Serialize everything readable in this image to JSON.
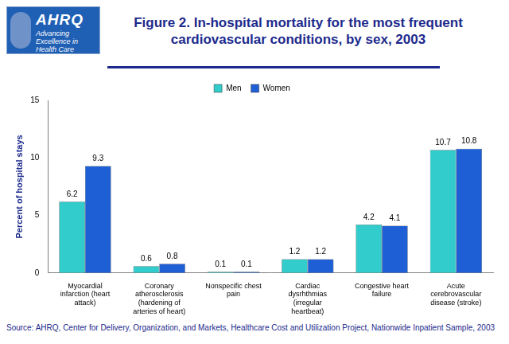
{
  "logo": {
    "name": "AHRQ",
    "tagline": "Advancing Excellence in Health Care"
  },
  "chart_data": {
    "type": "bar",
    "title": "Figure 2. In-hospital mortality for the most frequent cardiovascular conditions, by sex, 2003",
    "y_label": "Percent of hospital stays",
    "source": "Source: AHRQ, Center for Delivery, Organization, and Markets, Healthcare Cost and Utilization Project, Nationwide Inpatient Sample, 2003",
    "categories": [
      "Myocardial infarction (heart attack)",
      "Coronary atherosclerosis (hardening of arteries of heart)",
      "Nonspecific chest pain",
      "Cardiac dysrhthmias (irregular heartbeat)",
      "Congestive heart failure",
      "Acute cerebrovascular disease (stroke)"
    ],
    "series": [
      {
        "name": "Men",
        "color": "#33cccc",
        "values": [
          6.2,
          0.6,
          0.1,
          1.2,
          4.2,
          10.7
        ]
      },
      {
        "name": "Women",
        "color": "#1f5fd6",
        "values": [
          9.3,
          0.8,
          0.1,
          1.2,
          4.1,
          10.8
        ]
      }
    ],
    "ylim": [
      0,
      15
    ],
    "yticks": [
      0,
      5,
      10,
      15
    ],
    "grid": false,
    "legend": "top",
    "data_labels": true
  }
}
